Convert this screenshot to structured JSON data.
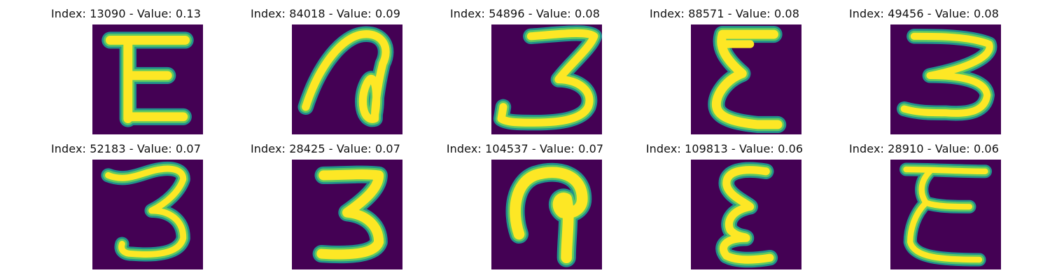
{
  "figure": {
    "background": "#ffffff",
    "colormap": "viridis",
    "panels": [
      {
        "index": 13090,
        "value": 0.13,
        "title": "Index: 13090 - Value: 0.13",
        "glyph": "E"
      },
      {
        "index": 84018,
        "value": 0.09,
        "title": "Index: 84018 - Value: 0.09",
        "glyph": "loop"
      },
      {
        "index": 54896,
        "value": 0.08,
        "title": "Index: 54896 - Value: 0.08",
        "glyph": "3"
      },
      {
        "index": 88571,
        "value": 0.08,
        "title": "Index: 88571 - Value: 0.08",
        "glyph": "Σ"
      },
      {
        "index": 49456,
        "value": 0.08,
        "title": "Index: 49456 - Value: 0.08",
        "glyph": "3"
      },
      {
        "index": 52183,
        "value": 0.07,
        "title": "Index: 52183 - Value: 0.07",
        "glyph": "3"
      },
      {
        "index": 28425,
        "value": 0.07,
        "title": "Index: 28425 - Value: 0.07",
        "glyph": "3"
      },
      {
        "index": 104537,
        "value": 0.07,
        "title": "Index: 104537 - Value: 0.07",
        "glyph": "hook"
      },
      {
        "index": 109813,
        "value": 0.06,
        "title": "Index: 109813 - Value: 0.06",
        "glyph": "ε"
      },
      {
        "index": 28910,
        "value": 0.06,
        "title": "Index: 28910 - Value: 0.06",
        "glyph": "E"
      }
    ],
    "colors": {
      "background_pixel": "#440154",
      "stroke_core": "#fde725",
      "stroke_edge": "#5ec962",
      "stroke_outer": "#21918c"
    }
  }
}
